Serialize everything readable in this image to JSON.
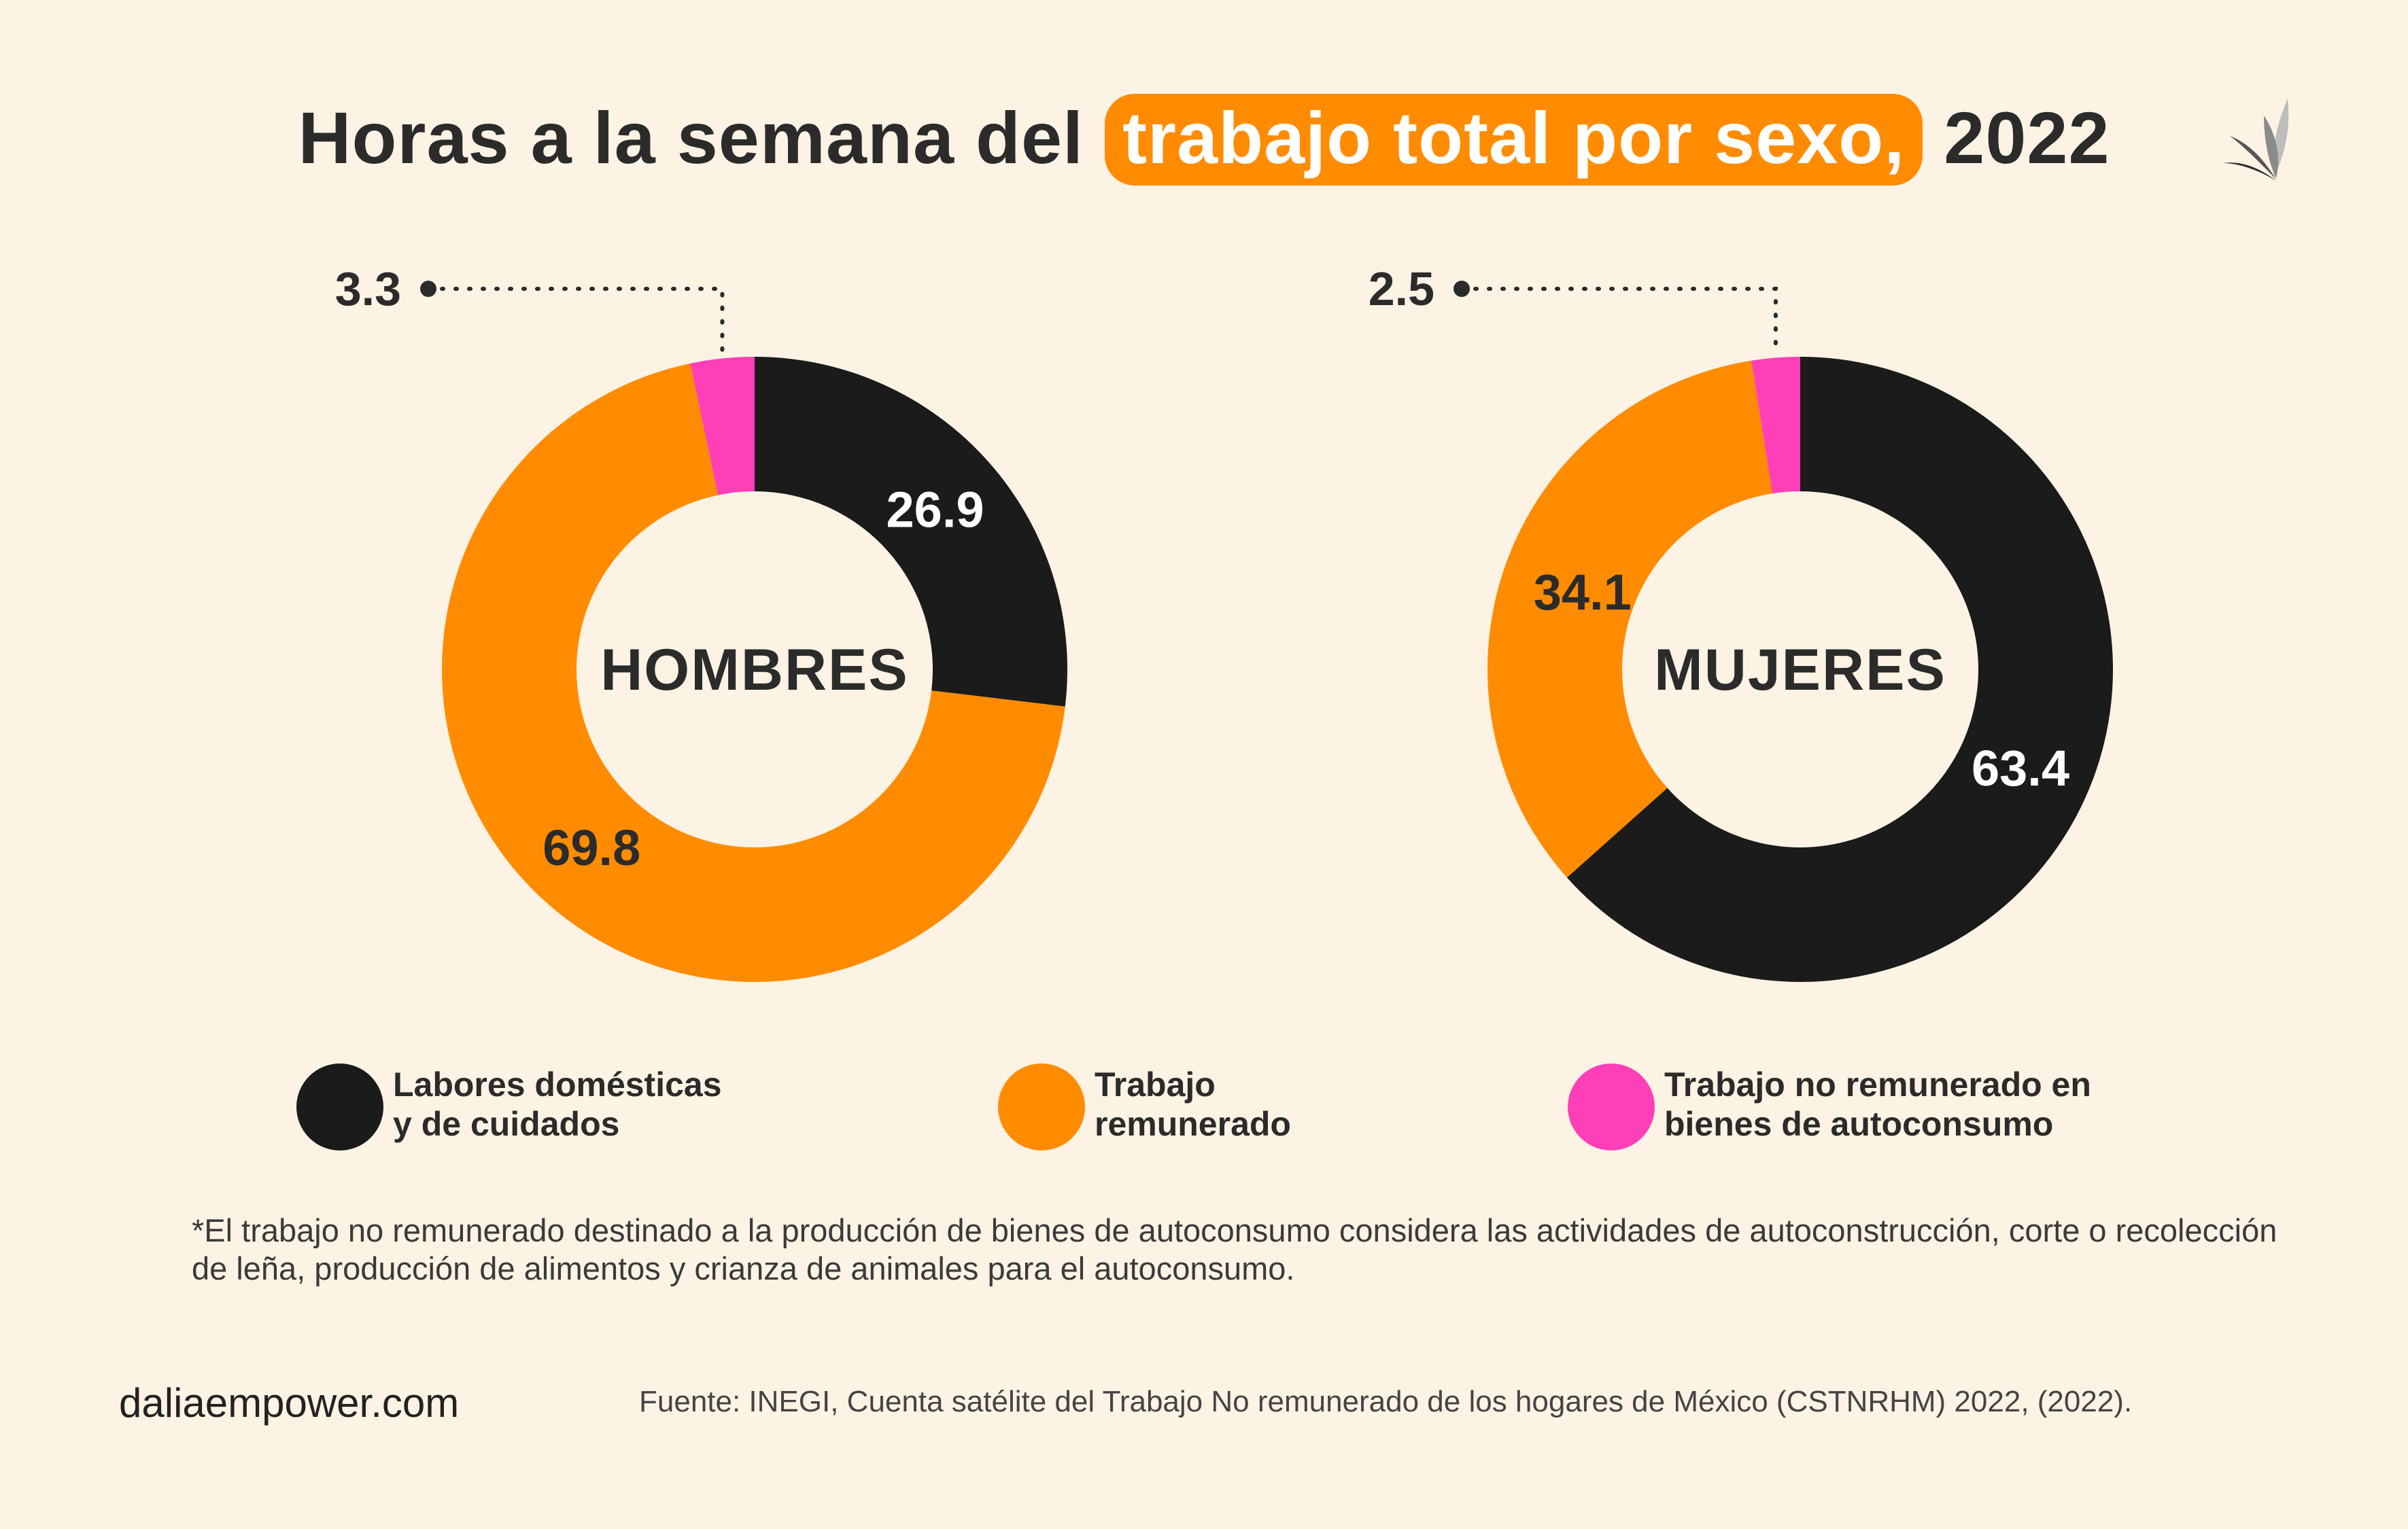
{
  "header": {
    "title_before": "Horas a la semana del ",
    "title_highlight": "trabajo total por sexo,",
    "title_after": " 2022"
  },
  "logo": {
    "icon": "lotus-flower-icon"
  },
  "colors": {
    "domestic": "#1b1b1b",
    "paid": "#ff8c00",
    "unpaid_selfconsumption": "#ff3fb8",
    "center": "#fdf3e4",
    "label_dark": "#2b2b2b",
    "label_light": "#ffffff"
  },
  "chart_data": [
    {
      "type": "pie",
      "center_label": "HOMBRES",
      "segments": [
        {
          "name": "Labores domésticas y de cuidados",
          "value": 26.9
        },
        {
          "name": "Trabajo remunerado",
          "value": 69.8
        },
        {
          "name": "Trabajo no remunerado en bienes de autoconsumo",
          "value": 3.3
        }
      ]
    },
    {
      "type": "pie",
      "center_label": "MUJERES",
      "segments": [
        {
          "name": "Labores domésticas y de cuidados",
          "value": 63.4
        },
        {
          "name": "Trabajo remunerado",
          "value": 34.1
        },
        {
          "name": "Trabajo no remunerado en bienes de autoconsumo",
          "value": 2.5
        }
      ]
    }
  ],
  "legend": [
    {
      "label": "Labores domésticas\ny de cuidados"
    },
    {
      "label": "Trabajo\nremunerado"
    },
    {
      "label": "Trabajo no remunerado en\nbienes de autoconsumo"
    }
  ],
  "footnote": "*El trabajo no remunerado destinado a la producción de bienes de autoconsumo considera las actividades de autoconstrucción, corte o recolección de leña, producción de alimentos y crianza de animales para el autoconsumo.",
  "footer": {
    "website": "daliaempower.com",
    "source": "Fuente: INEGI, Cuenta satélite del Trabajo No remunerado de los hogares de México (CSTNRHM) 2022, (2022)."
  }
}
